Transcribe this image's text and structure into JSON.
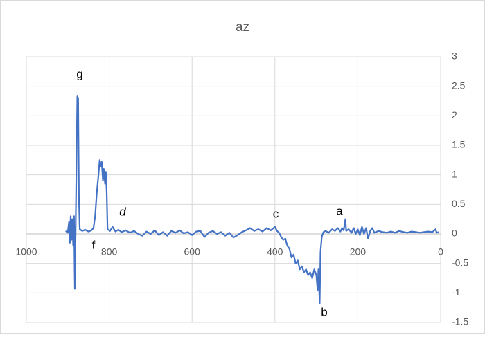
{
  "chart_data": {
    "type": "line",
    "title": "az",
    "x": [
      905,
      900,
      897,
      895,
      893,
      891,
      889,
      887,
      885,
      883,
      881,
      879,
      877,
      875,
      873,
      871,
      865,
      858,
      850,
      843,
      838,
      834,
      830,
      826,
      823,
      820,
      818,
      815,
      813,
      810,
      808,
      806,
      804,
      798,
      792,
      785,
      778,
      770,
      760,
      750,
      740,
      730,
      720,
      710,
      700,
      690,
      680,
      670,
      660,
      650,
      640,
      630,
      620,
      610,
      600,
      590,
      580,
      570,
      560,
      550,
      540,
      530,
      520,
      510,
      500,
      490,
      480,
      470,
      460,
      450,
      440,
      430,
      420,
      410,
      400,
      395,
      390,
      385,
      380,
      375,
      370,
      365,
      360,
      355,
      350,
      345,
      340,
      335,
      330,
      325,
      320,
      315,
      310,
      305,
      300,
      297,
      295,
      292,
      290,
      287,
      283,
      278,
      270,
      262,
      255,
      248,
      242,
      238,
      234,
      230,
      228,
      222,
      215,
      210,
      205,
      200,
      195,
      190,
      185,
      180,
      175,
      170,
      165,
      160,
      150,
      140,
      130,
      120,
      110,
      100,
      90,
      80,
      70,
      60,
      50,
      40,
      30,
      20,
      12,
      10,
      5
    ],
    "series": [
      {
        "color": "#4472c4",
        "values": [
          0.05,
          0.02,
          0.2,
          -0.15,
          0.3,
          -0.1,
          0.25,
          -0.2,
          0.3,
          -0.93,
          0.1,
          1.2,
          2.33,
          2.3,
          0.6,
          0.08,
          0.05,
          0.07,
          0.04,
          0.06,
          0.1,
          0.3,
          0.7,
          1.0,
          1.25,
          1.15,
          1.22,
          0.9,
          1.1,
          0.85,
          1.05,
          0.7,
          0.08,
          0.05,
          0.12,
          0.04,
          0.07,
          0.03,
          0.06,
          0.02,
          0.05,
          0.0,
          -0.03,
          0.04,
          0.0,
          0.06,
          -0.02,
          0.03,
          -0.03,
          0.05,
          0.02,
          0.06,
          0.01,
          0.03,
          -0.02,
          0.04,
          0.05,
          -0.05,
          0.02,
          0.05,
          0.0,
          0.03,
          -0.03,
          0.02,
          -0.06,
          -0.02,
          0.03,
          0.06,
          0.1,
          0.05,
          0.08,
          0.04,
          0.1,
          0.06,
          0.12,
          0.05,
          0.02,
          -0.05,
          -0.1,
          -0.08,
          -0.2,
          -0.25,
          -0.4,
          -0.35,
          -0.5,
          -0.45,
          -0.6,
          -0.55,
          -0.65,
          -0.6,
          -0.7,
          -0.65,
          -0.75,
          -0.6,
          -0.7,
          -0.95,
          -0.6,
          -1.18,
          -0.3,
          -0.05,
          0.03,
          0.05,
          0.02,
          0.08,
          0.05,
          0.1,
          0.04,
          0.1,
          0.06,
          0.25,
          0.05,
          0.08,
          0.02,
          0.1,
          0.0,
          0.08,
          -0.02,
          0.12,
          0.0,
          0.1,
          -0.08,
          0.05,
          0.1,
          0.02,
          0.05,
          0.03,
          0.02,
          0.04,
          0.02,
          0.05,
          0.03,
          0.02,
          0.04,
          0.03,
          0.02,
          0.03,
          0.04,
          0.03,
          0.08,
          0.02,
          0.03
        ]
      }
    ],
    "xlim": [
      1000,
      0
    ],
    "xticks": [
      1000,
      800,
      600,
      400,
      200,
      0
    ],
    "ylim": [
      -1.5,
      3
    ],
    "yticks": [
      -1.5,
      -1,
      -0.5,
      0,
      0.5,
      1,
      1.5,
      2,
      2.5,
      3
    ],
    "grid": true,
    "annotations": [
      "g",
      "f",
      "d",
      "c",
      "a",
      "b"
    ]
  }
}
